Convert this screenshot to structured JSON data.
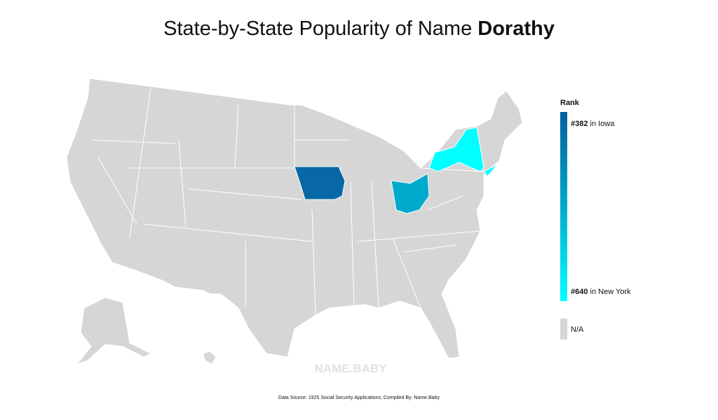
{
  "header": {
    "title_prefix": "State-by-State Popularity of Name ",
    "name": "Dorathy"
  },
  "legend": {
    "title": "Rank",
    "top": {
      "rank": "#382",
      "place": " in Iowa"
    },
    "bottom": {
      "rank": "#640",
      "place": " in New York"
    },
    "na": "N/A"
  },
  "watermark": "NAME.BABY",
  "footer": {
    "source": "Data Source: 1925 Social Security Applications; Compiled By: Name.Baby"
  }
}
